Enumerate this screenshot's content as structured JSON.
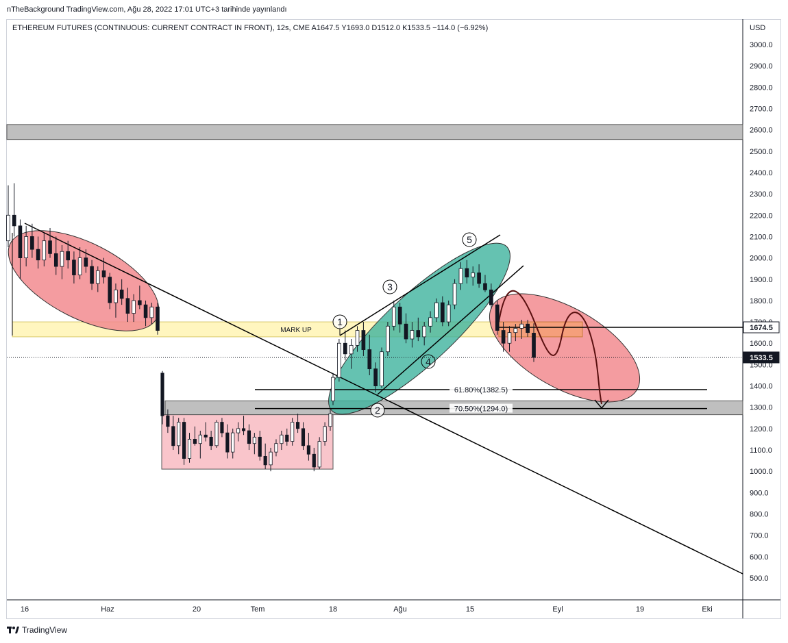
{
  "header": {
    "publish_text": "nTheBackground TradingView.com, Ağu 28, 2022 17:01 UTC+3 tarihinde yayınlandı"
  },
  "legend": {
    "text": "ETHEREUM FUTURES (CONTINUOUS: CURRENT CONTRACT IN FRONT), 12s, CME  A1647.5  Y1693.0  D1512.0  K1533.5  −114.0 (−6.92%)"
  },
  "footer": {
    "brand": "TradingView"
  },
  "colors": {
    "bull": "#ffffff",
    "bear": "#131722",
    "grey_zone": "#bfbfbf",
    "mark_up_zone": "#fff5b8",
    "red_ellipse": "#f28b8f",
    "teal_ellipse": "#3fb39e",
    "pink_box": "#f9c5cb",
    "axis_text": "#131722"
  },
  "chart_data": {
    "type": "candlestick",
    "y_axis": {
      "currency": "USD",
      "ticks": [
        "3000.0",
        "2900.0",
        "2800.0",
        "2700.0",
        "2600.0",
        "2500.0",
        "2400.0",
        "2300.0",
        "2200.0",
        "2100.0",
        "2000.0",
        "1900.0",
        "1800.0",
        "1700.0",
        "1600.0",
        "1500.0",
        "1400.0",
        "1300.0",
        "1200.0",
        "1100.0",
        "1000.0",
        "900.0",
        "800.0",
        "700.0",
        "600.0",
        "500.0"
      ],
      "range": [
        450,
        3100
      ]
    },
    "x_axis": {
      "ticks": [
        "16",
        "Haz",
        "20",
        "Tem",
        "18",
        "Ağu",
        "15",
        "Eyl",
        "19",
        "Eki"
      ]
    },
    "price_labels": [
      {
        "value": 1674.5,
        "text": "1674.5",
        "style": "line"
      },
      {
        "value": 1533.5,
        "text": "1533.5",
        "style": "last"
      }
    ],
    "zones": [
      {
        "name": "resistance-zone",
        "from": 2555,
        "to": 2625
      },
      {
        "name": "support-zone",
        "from": 1265,
        "to": 1330
      },
      {
        "name": "mark-up-zone",
        "from": 1630,
        "to": 1700,
        "label": "MARK UP"
      }
    ],
    "fib_levels": [
      {
        "text": "61.80%(1382.5)",
        "value": 1382.5
      },
      {
        "text": "70.50%(1294.0)",
        "value": 1294.0
      }
    ],
    "wave_labels": [
      "1",
      "2",
      "3",
      "4",
      "5"
    ],
    "series": [
      {
        "segment": "may-june-downtrend",
        "values": [
          [
            2080,
            2340,
            2050,
            2200
          ],
          [
            2200,
            2350,
            2100,
            2150
          ],
          [
            2150,
            2180,
            1900,
            2000
          ],
          [
            2000,
            2150,
            1960,
            2100
          ],
          [
            2100,
            2160,
            2000,
            2040
          ],
          [
            2040,
            2100,
            1950,
            1990
          ],
          [
            1990,
            2120,
            1960,
            2080
          ],
          [
            2080,
            2140,
            2000,
            2020
          ],
          [
            2020,
            2100,
            1920,
            1960
          ],
          [
            1960,
            2060,
            1900,
            2030
          ],
          [
            2030,
            2080,
            1950,
            1990
          ],
          [
            1990,
            2030,
            1880,
            1920
          ],
          [
            1920,
            2050,
            1900,
            2000
          ],
          [
            2000,
            2040,
            1930,
            1960
          ],
          [
            1960,
            1990,
            1850,
            1880
          ],
          [
            1880,
            1960,
            1840,
            1940
          ],
          [
            1940,
            2000,
            1880,
            1910
          ],
          [
            1910,
            1930,
            1760,
            1790
          ],
          [
            1790,
            1880,
            1720,
            1850
          ],
          [
            1850,
            1900,
            1780,
            1810
          ],
          [
            1810,
            1860,
            1700,
            1740
          ],
          [
            1740,
            1830,
            1700,
            1800
          ],
          [
            1800,
            1870,
            1760,
            1780
          ],
          [
            1780,
            1800,
            1680,
            1720
          ],
          [
            1720,
            1790,
            1690,
            1770
          ],
          [
            1770,
            1790,
            1640,
            1660
          ]
        ]
      },
      {
        "segment": "july-range",
        "values": [
          [
            1460,
            1470,
            1220,
            1260
          ],
          [
            1260,
            1290,
            1180,
            1210
          ],
          [
            1210,
            1260,
            1100,
            1120
          ],
          [
            1120,
            1250,
            1080,
            1230
          ],
          [
            1230,
            1250,
            1030,
            1060
          ],
          [
            1060,
            1180,
            1040,
            1150
          ],
          [
            1150,
            1210,
            1120,
            1130
          ],
          [
            1130,
            1190,
            1060,
            1170
          ],
          [
            1170,
            1230,
            1140,
            1160
          ],
          [
            1160,
            1190,
            1100,
            1120
          ],
          [
            1120,
            1240,
            1110,
            1230
          ],
          [
            1230,
            1250,
            1160,
            1180
          ],
          [
            1180,
            1220,
            1060,
            1090
          ],
          [
            1090,
            1200,
            1060,
            1180
          ],
          [
            1180,
            1230,
            1140,
            1200
          ],
          [
            1200,
            1260,
            1170,
            1190
          ],
          [
            1190,
            1220,
            1100,
            1130
          ],
          [
            1130,
            1180,
            1080,
            1160
          ],
          [
            1160,
            1190,
            1050,
            1070
          ],
          [
            1070,
            1130,
            1010,
            1030
          ],
          [
            1030,
            1110,
            1000,
            1090
          ],
          [
            1090,
            1150,
            1070,
            1130
          ],
          [
            1130,
            1190,
            1100,
            1170
          ],
          [
            1170,
            1200,
            1120,
            1140
          ],
          [
            1140,
            1250,
            1120,
            1230
          ],
          [
            1230,
            1270,
            1180,
            1200
          ],
          [
            1200,
            1230,
            1100,
            1120
          ],
          [
            1120,
            1180,
            1050,
            1080
          ],
          [
            1080,
            1110,
            1000,
            1020
          ],
          [
            1020,
            1160,
            1010,
            1140
          ],
          [
            1140,
            1230,
            1120,
            1210
          ],
          [
            1210,
            1290,
            1190,
            1270
          ]
        ]
      },
      {
        "segment": "july-aug-rally",
        "values": [
          [
            1330,
            1460,
            1310,
            1440
          ],
          [
            1440,
            1620,
            1420,
            1600
          ],
          [
            1600,
            1660,
            1520,
            1550
          ],
          [
            1550,
            1620,
            1480,
            1590
          ],
          [
            1590,
            1680,
            1560,
            1660
          ],
          [
            1660,
            1700,
            1540,
            1570
          ],
          [
            1570,
            1640,
            1450,
            1480
          ],
          [
            1480,
            1510,
            1370,
            1400
          ],
          [
            1400,
            1580,
            1390,
            1560
          ],
          [
            1560,
            1700,
            1540,
            1680
          ],
          [
            1680,
            1800,
            1660,
            1770
          ],
          [
            1770,
            1790,
            1650,
            1690
          ],
          [
            1690,
            1740,
            1600,
            1620
          ],
          [
            1620,
            1700,
            1580,
            1660
          ],
          [
            1660,
            1720,
            1610,
            1630
          ],
          [
            1630,
            1700,
            1590,
            1680
          ],
          [
            1680,
            1750,
            1650,
            1720
          ],
          [
            1720,
            1810,
            1700,
            1790
          ],
          [
            1790,
            1820,
            1680,
            1700
          ],
          [
            1700,
            1800,
            1680,
            1780
          ],
          [
            1780,
            1900,
            1760,
            1880
          ],
          [
            1880,
            1980,
            1850,
            1950
          ],
          [
            1950,
            1990,
            1880,
            1910
          ],
          [
            1910,
            1960,
            1870,
            1930
          ],
          [
            1930,
            1970,
            1860,
            1880
          ],
          [
            1880,
            1920,
            1840,
            1850
          ],
          [
            1850,
            1880,
            1760,
            1780
          ],
          [
            1780,
            1800,
            1640,
            1660
          ],
          [
            1660,
            1700,
            1560,
            1600
          ],
          [
            1600,
            1680,
            1560,
            1650
          ],
          [
            1650,
            1690,
            1610,
            1670
          ],
          [
            1670,
            1710,
            1620,
            1690
          ],
          [
            1690,
            1710,
            1630,
            1650
          ],
          [
            1647.5,
            1693,
            1512,
            1533.5
          ]
        ]
      }
    ]
  }
}
